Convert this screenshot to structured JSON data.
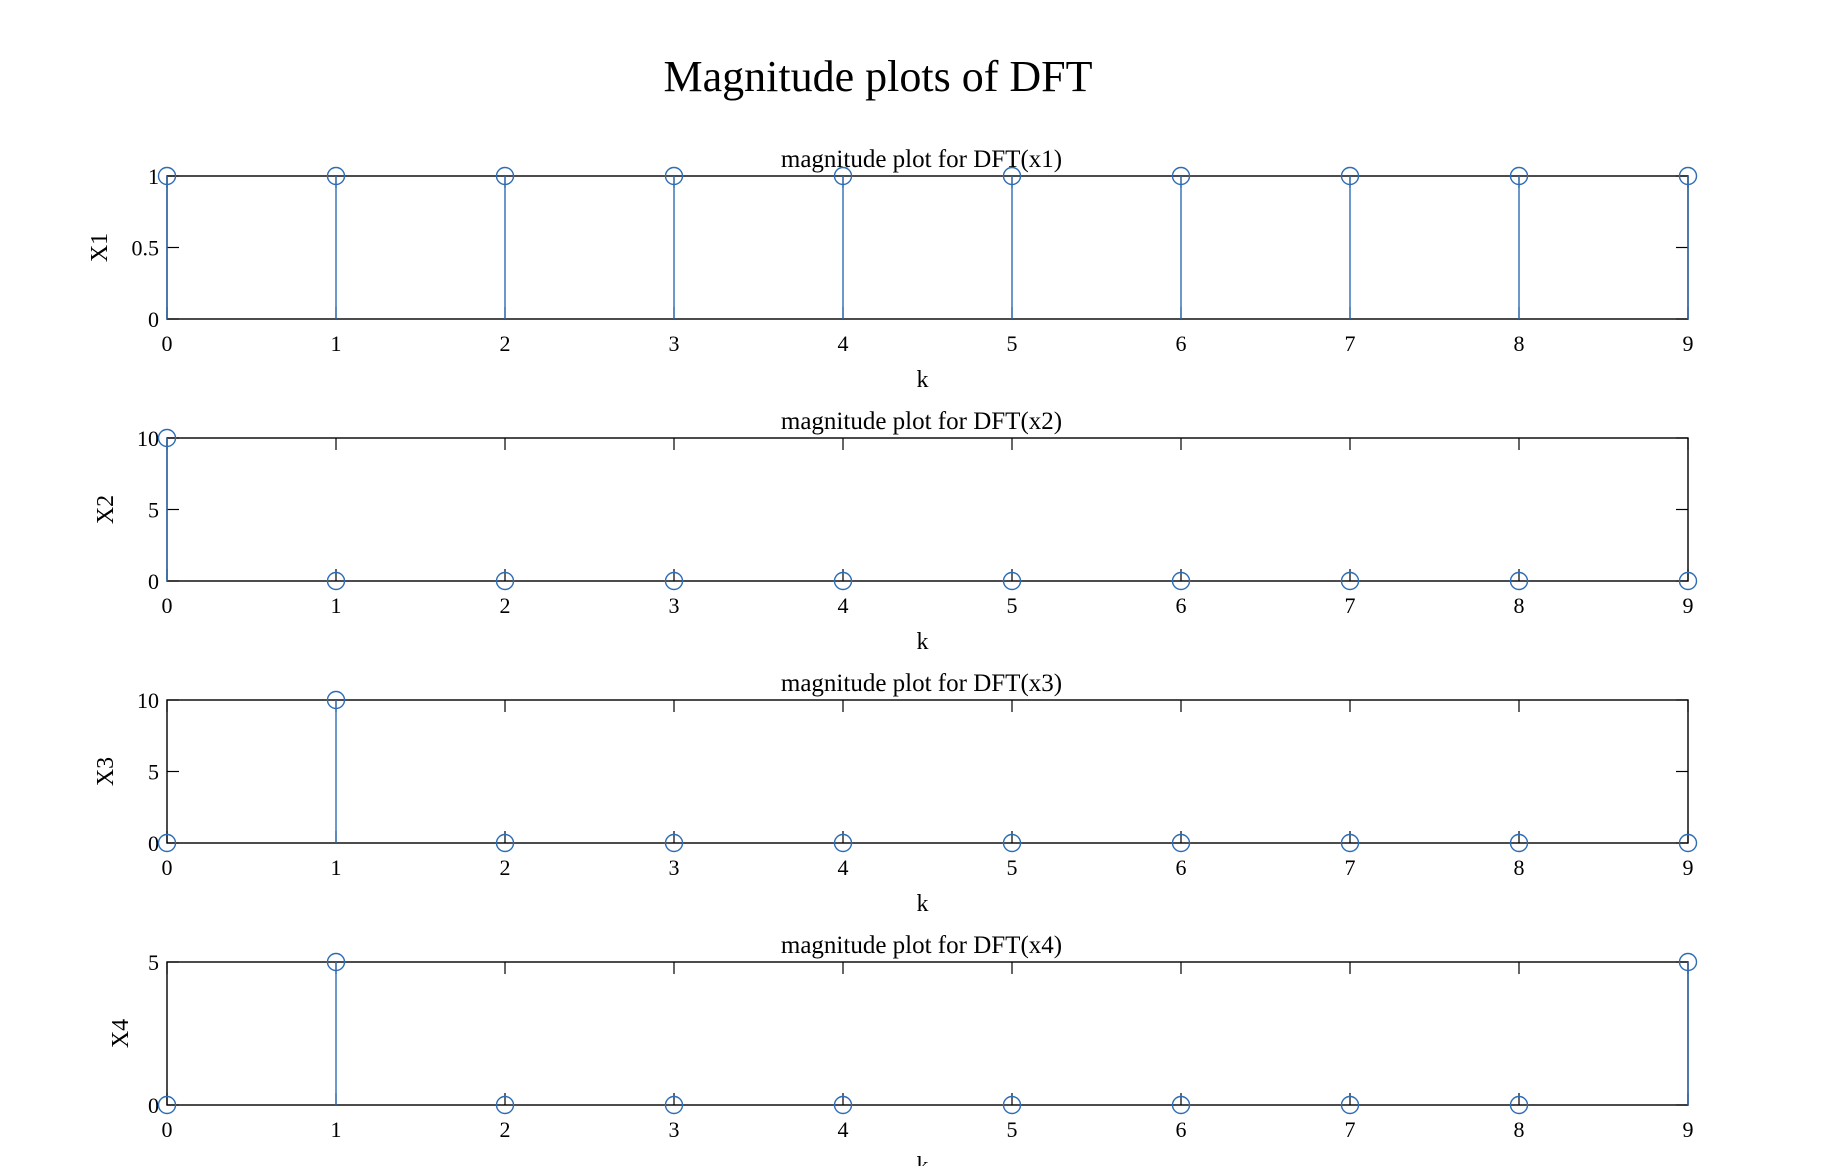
{
  "figure": {
    "title": "Magnitude plots of DFT",
    "stem_color": "#2e6db5",
    "axis_color": "#000000"
  },
  "chart_data": [
    {
      "type": "stem",
      "title": "magnitude plot for DFT(x1)",
      "xlabel": "k",
      "ylabel": "X1",
      "xlim": [
        0,
        9
      ],
      "ylim": [
        0,
        1
      ],
      "xticks": [
        0,
        1,
        2,
        3,
        4,
        5,
        6,
        7,
        8,
        9
      ],
      "yticks": [
        0,
        0.5,
        1
      ],
      "x": [
        0,
        1,
        2,
        3,
        4,
        5,
        6,
        7,
        8,
        9
      ],
      "values": [
        1,
        1,
        1,
        1,
        1,
        1,
        1,
        1,
        1,
        1
      ]
    },
    {
      "type": "stem",
      "title": "magnitude plot for DFT(x2)",
      "xlabel": "k",
      "ylabel": "X2",
      "xlim": [
        0,
        9
      ],
      "ylim": [
        0,
        10
      ],
      "xticks": [
        0,
        1,
        2,
        3,
        4,
        5,
        6,
        7,
        8,
        9
      ],
      "yticks": [
        0,
        5,
        10
      ],
      "x": [
        0,
        1,
        2,
        3,
        4,
        5,
        6,
        7,
        8,
        9
      ],
      "values": [
        10,
        0,
        0,
        0,
        0,
        0,
        0,
        0,
        0,
        0
      ]
    },
    {
      "type": "stem",
      "title": "magnitude plot for DFT(x3)",
      "xlabel": "k",
      "ylabel": "X3",
      "xlim": [
        0,
        9
      ],
      "ylim": [
        0,
        10
      ],
      "xticks": [
        0,
        1,
        2,
        3,
        4,
        5,
        6,
        7,
        8,
        9
      ],
      "yticks": [
        0,
        5,
        10
      ],
      "x": [
        0,
        1,
        2,
        3,
        4,
        5,
        6,
        7,
        8,
        9
      ],
      "values": [
        0,
        10,
        0,
        0,
        0,
        0,
        0,
        0,
        0,
        0
      ]
    },
    {
      "type": "stem",
      "title": "magnitude plot for DFT(x4)",
      "xlabel": "k",
      "ylabel": "X4",
      "xlim": [
        0,
        9
      ],
      "ylim": [
        0,
        5
      ],
      "xticks": [
        0,
        1,
        2,
        3,
        4,
        5,
        6,
        7,
        8,
        9
      ],
      "yticks": [
        0,
        5
      ],
      "x": [
        0,
        1,
        2,
        3,
        4,
        5,
        6,
        7,
        8,
        9
      ],
      "values": [
        0,
        5,
        0,
        0,
        0,
        0,
        0,
        0,
        0,
        5
      ]
    }
  ]
}
